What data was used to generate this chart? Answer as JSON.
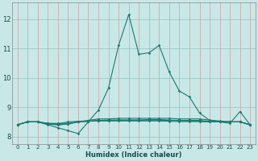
{
  "xlabel": "Humidex (Indice chaleur)",
  "bg_color": "#c8e8e8",
  "axis_bg_color": "#c8e8e8",
  "grid_h_color": "#a0c8c8",
  "grid_v_color": "#d4a8a8",
  "line_color": "#1a7a6e",
  "xlabel_color": "#1a4a4a",
  "tick_color": "#1a4a4a",
  "xlim": [
    -0.5,
    23.5
  ],
  "ylim": [
    7.75,
    12.55
  ],
  "yticks": [
    8,
    9,
    10,
    11,
    12
  ],
  "xticks": [
    0,
    1,
    2,
    3,
    4,
    5,
    6,
    7,
    8,
    9,
    10,
    11,
    12,
    13,
    14,
    15,
    16,
    17,
    18,
    19,
    20,
    21,
    22,
    23
  ],
  "lines": [
    [
      8.4,
      8.5,
      8.5,
      8.4,
      8.3,
      8.2,
      8.1,
      8.5,
      8.9,
      9.65,
      11.1,
      12.15,
      10.8,
      10.85,
      11.1,
      10.2,
      9.55,
      9.35,
      8.8,
      8.55,
      8.5,
      8.45,
      8.85,
      8.4
    ],
    [
      8.4,
      8.5,
      8.5,
      8.45,
      8.45,
      8.45,
      8.5,
      8.55,
      8.6,
      8.6,
      8.62,
      8.62,
      8.62,
      8.62,
      8.62,
      8.62,
      8.6,
      8.6,
      8.6,
      8.56,
      8.53,
      8.5,
      8.5,
      8.4
    ],
    [
      8.4,
      8.5,
      8.5,
      8.45,
      8.4,
      8.42,
      8.5,
      8.52,
      8.55,
      8.56,
      8.56,
      8.56,
      8.56,
      8.56,
      8.56,
      8.55,
      8.54,
      8.53,
      8.52,
      8.5,
      8.5,
      8.5,
      8.5,
      8.4
    ],
    [
      8.4,
      8.5,
      8.5,
      8.44,
      8.43,
      8.5,
      8.52,
      8.53,
      8.53,
      8.53,
      8.53,
      8.53,
      8.53,
      8.53,
      8.53,
      8.52,
      8.51,
      8.51,
      8.51,
      8.5,
      8.5,
      8.5,
      8.5,
      8.4
    ],
    [
      8.4,
      8.5,
      8.5,
      8.42,
      8.4,
      8.43,
      8.5,
      8.52,
      8.54,
      8.55,
      8.56,
      8.56,
      8.56,
      8.58,
      8.58,
      8.56,
      8.55,
      8.55,
      8.55,
      8.52,
      8.5,
      8.5,
      8.5,
      8.4
    ]
  ]
}
